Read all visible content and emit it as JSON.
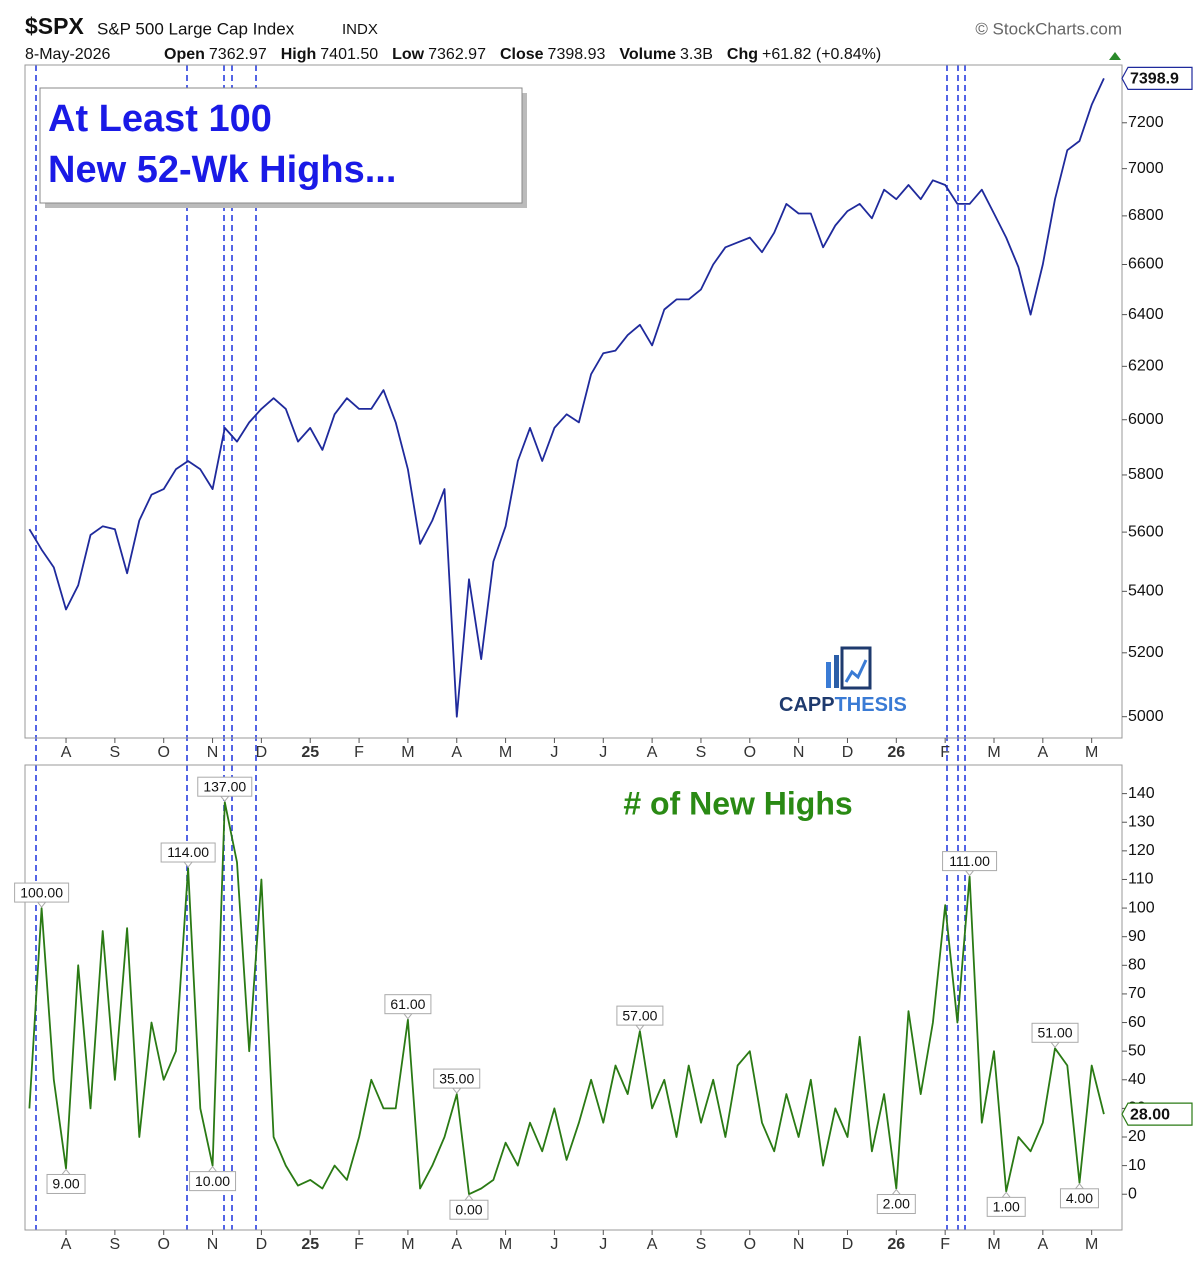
{
  "header": {
    "symbol": "$SPX",
    "name": "S&P 500 Large Cap Index",
    "exchange": "INDX",
    "source": "© StockCharts.com",
    "date": "8-May-2026",
    "quote": [
      [
        "Open",
        "7362.97"
      ],
      [
        "High",
        "7401.50"
      ],
      [
        "Low",
        "7362.97"
      ],
      [
        "Close",
        "7398.93"
      ],
      [
        "Volume",
        "3.3B"
      ],
      [
        "Chg",
        "+61.82 (+0.84%)"
      ]
    ]
  },
  "chart_data": [
    {
      "type": "line",
      "log": true,
      "grid": false,
      "color": "#1f2a9c",
      "annotation": [
        "At Least 100",
        "New 52-Wk Highs..."
      ],
      "watermark": [
        "CAPP",
        "THESIS"
      ],
      "categories": [
        null,
        null,
        null,
        "A",
        null,
        null,
        null,
        "S",
        null,
        null,
        null,
        "O",
        null,
        null,
        null,
        "N",
        null,
        null,
        null,
        "D",
        null,
        null,
        null,
        "25",
        null,
        null,
        null,
        "F",
        null,
        null,
        null,
        "M",
        null,
        null,
        null,
        "A",
        null,
        null,
        null,
        "M",
        null,
        null,
        null,
        "J",
        null,
        null,
        null,
        "J",
        null,
        null,
        null,
        "A",
        null,
        null,
        null,
        "S",
        null,
        null,
        null,
        "O",
        null,
        null,
        null,
        "N",
        null,
        null,
        null,
        "D",
        null,
        null,
        null,
        "26",
        null,
        null,
        null,
        "F",
        null,
        null,
        null,
        "M",
        null,
        null,
        null,
        "A",
        null,
        null,
        null,
        "M",
        null
      ],
      "values": [
        5610,
        5540,
        5480,
        5340,
        5420,
        5590,
        5620,
        5610,
        5460,
        5640,
        5730,
        5750,
        5820,
        5850,
        5820,
        5750,
        5970,
        5920,
        5990,
        6040,
        6080,
        6040,
        5920,
        5970,
        5890,
        6020,
        6080,
        6040,
        6040,
        6110,
        5990,
        5820,
        5560,
        5640,
        5750,
        5000,
        5440,
        5180,
        5500,
        5620,
        5850,
        5970,
        5850,
        5970,
        6020,
        5990,
        6170,
        6250,
        6260,
        6320,
        6360,
        6280,
        6420,
        6460,
        6460,
        6500,
        6600,
        6670,
        6690,
        6710,
        6650,
        6730,
        6850,
        6810,
        6810,
        6670,
        6760,
        6820,
        6850,
        6790,
        6910,
        6870,
        6930,
        6870,
        6950,
        6930,
        6850,
        6850,
        6910,
        6810,
        6710,
        6590,
        6400,
        6600,
        6870,
        7080,
        7120,
        7280,
        7398.93
      ],
      "value_labels": [
        null,
        null,
        null,
        null,
        null,
        null,
        null,
        null,
        null,
        null,
        null,
        null,
        null,
        null,
        null,
        null,
        null,
        null,
        null,
        null,
        null,
        null,
        null,
        null,
        null,
        null,
        null,
        null,
        null,
        null,
        null,
        null,
        null,
        null,
        null,
        null,
        null,
        null,
        null,
        null,
        null,
        null,
        null,
        null,
        null,
        null,
        null,
        null,
        null,
        null,
        null,
        null,
        null,
        null,
        null,
        null,
        null,
        null,
        null,
        null,
        null,
        null,
        null,
        null,
        null,
        null,
        null,
        null,
        null,
        null,
        null,
        null,
        null,
        null,
        null,
        null,
        null,
        null,
        null,
        null,
        null,
        null,
        null,
        null,
        null,
        null,
        null,
        null,
        "7398.9"
      ],
      "ylim": [
        4935,
        7460
      ],
      "yticks": [
        5000,
        5200,
        5400,
        5600,
        5800,
        6000,
        6200,
        6400,
        6600,
        6800,
        7000,
        7200
      ]
    },
    {
      "type": "line",
      "grid": false,
      "color": "#2a7a14",
      "title": "# of New Highs",
      "categories": [
        null,
        null,
        null,
        "A",
        null,
        null,
        null,
        "S",
        null,
        null,
        null,
        "O",
        null,
        null,
        null,
        "N",
        null,
        null,
        null,
        "D",
        null,
        null,
        null,
        "25",
        null,
        null,
        null,
        "F",
        null,
        null,
        null,
        "M",
        null,
        null,
        null,
        "A",
        null,
        null,
        null,
        "M",
        null,
        null,
        null,
        "J",
        null,
        null,
        null,
        "J",
        null,
        null,
        null,
        "A",
        null,
        null,
        null,
        "S",
        null,
        null,
        null,
        "O",
        null,
        null,
        null,
        "N",
        null,
        null,
        null,
        "D",
        null,
        null,
        null,
        "26",
        null,
        null,
        null,
        "F",
        null,
        null,
        null,
        "M",
        null,
        null,
        null,
        "A",
        null,
        null,
        null,
        "M",
        null
      ],
      "values": [
        30,
        100,
        40,
        9,
        80,
        30,
        92,
        40,
        93,
        20,
        60,
        40,
        50,
        114,
        30,
        10,
        137,
        116,
        50,
        110,
        20,
        10,
        3,
        5,
        2,
        10,
        5,
        20,
        40,
        30,
        30,
        61,
        2,
        10,
        20,
        35,
        0,
        2,
        5,
        18,
        10,
        25,
        15,
        30,
        12,
        25,
        40,
        25,
        45,
        35,
        57,
        30,
        40,
        20,
        45,
        25,
        40,
        20,
        45,
        50,
        25,
        15,
        35,
        20,
        40,
        10,
        30,
        20,
        55,
        15,
        35,
        2,
        64,
        35,
        60,
        101,
        60,
        111,
        25,
        50,
        1,
        20,
        15,
        25,
        51,
        45,
        4,
        45,
        28
      ],
      "value_labels": [
        null,
        "100.00",
        null,
        "9.00",
        null,
        null,
        null,
        null,
        null,
        null,
        null,
        null,
        null,
        "114.00",
        null,
        "10.00",
        "137.00",
        null,
        null,
        null,
        null,
        null,
        null,
        null,
        null,
        null,
        null,
        null,
        null,
        null,
        null,
        "61.00",
        null,
        null,
        null,
        "35.00",
        "0.00",
        null,
        null,
        null,
        null,
        null,
        null,
        null,
        null,
        null,
        null,
        null,
        null,
        null,
        "57.00",
        null,
        null,
        null,
        null,
        null,
        null,
        null,
        null,
        null,
        null,
        null,
        null,
        null,
        null,
        null,
        null,
        null,
        null,
        null,
        null,
        "2.00",
        null,
        null,
        null,
        null,
        null,
        "111.00",
        null,
        null,
        "1.00",
        null,
        null,
        null,
        "51.00",
        null,
        "4.00",
        null,
        "28.00"
      ],
      "ylim": [
        -12.5,
        150
      ],
      "yticks": [
        0,
        10,
        20,
        30,
        40,
        50,
        60,
        70,
        80,
        90,
        100,
        110,
        120,
        130,
        140
      ]
    }
  ]
}
